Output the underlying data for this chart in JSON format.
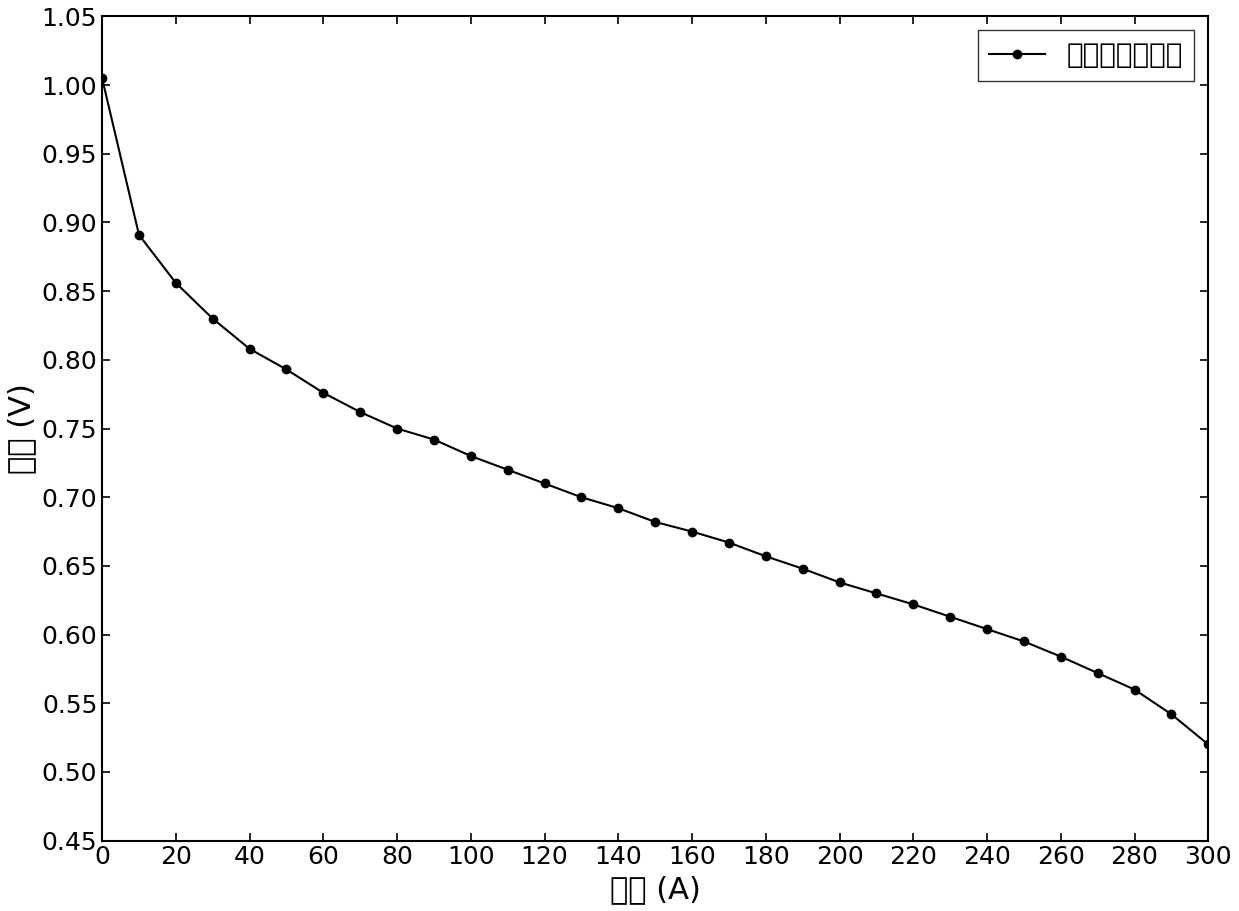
{
  "x": [
    0,
    10,
    20,
    30,
    40,
    50,
    60,
    70,
    80,
    90,
    100,
    110,
    120,
    130,
    140,
    150,
    160,
    170,
    180,
    190,
    200,
    210,
    220,
    230,
    240,
    250,
    260,
    270,
    280,
    290,
    300
  ],
  "y": [
    1.005,
    0.891,
    0.856,
    0.83,
    0.808,
    0.793,
    0.776,
    0.762,
    0.75,
    0.742,
    0.73,
    0.72,
    0.71,
    0.7,
    0.692,
    0.682,
    0.675,
    0.667,
    0.657,
    0.648,
    0.638,
    0.63,
    0.622,
    0.613,
    0.604,
    0.595,
    0.584,
    0.572,
    0.56,
    0.542,
    0.52
  ],
  "line_color": "#000000",
  "marker": "o",
  "marker_size": 6,
  "linewidth": 1.5,
  "xlabel": "电流 (A)",
  "ylabel": "电压 (V)",
  "legend_label": "模拟测试后电压",
  "xlim": [
    0,
    300
  ],
  "ylim": [
    0.45,
    1.05
  ],
  "xticks": [
    0,
    20,
    40,
    60,
    80,
    100,
    120,
    140,
    160,
    180,
    200,
    220,
    240,
    260,
    280,
    300
  ],
  "yticks": [
    0.45,
    0.5,
    0.55,
    0.6,
    0.65,
    0.7,
    0.75,
    0.8,
    0.85,
    0.9,
    0.95,
    1.0,
    1.05
  ],
  "xlabel_fontsize": 22,
  "ylabel_fontsize": 22,
  "tick_fontsize": 18,
  "legend_fontsize": 20,
  "background_color": "#ffffff"
}
